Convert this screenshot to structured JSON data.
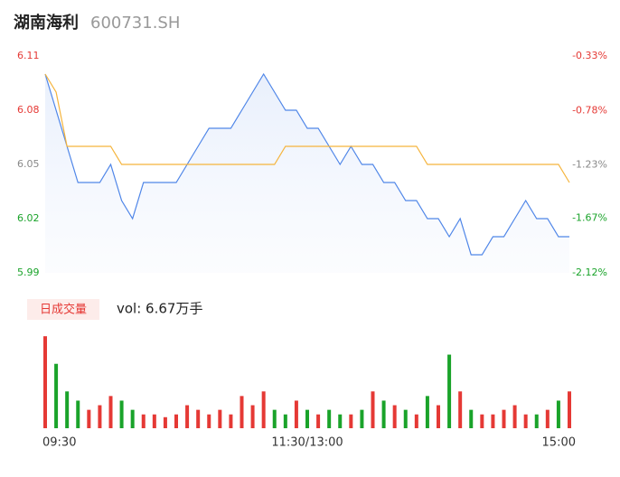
{
  "chart_data": {
    "type": "intraday",
    "title": "湖南海利",
    "subtitle": "600731.SH",
    "categories": [
      "09:30",
      null,
      null,
      null,
      null,
      null,
      null,
      null,
      null,
      null,
      null,
      null,
      null,
      null,
      null,
      null,
      null,
      null,
      null,
      null,
      null,
      null,
      null,
      null,
      "11:30/13:00",
      null,
      null,
      null,
      null,
      null,
      null,
      null,
      null,
      null,
      null,
      null,
      null,
      null,
      null,
      null,
      null,
      null,
      null,
      null,
      null,
      null,
      null,
      null,
      "15:00"
    ],
    "series": [
      {
        "name": "price",
        "color": "#4f86e8",
        "values": [
          6.1,
          6.08,
          6.06,
          6.04,
          6.04,
          6.04,
          6.05,
          6.03,
          6.02,
          6.04,
          6.04,
          6.04,
          6.04,
          6.05,
          6.06,
          6.07,
          6.07,
          6.07,
          6.08,
          6.09,
          6.1,
          6.09,
          6.08,
          6.08,
          6.07,
          6.07,
          6.06,
          6.05,
          6.06,
          6.05,
          6.05,
          6.04,
          6.04,
          6.03,
          6.03,
          6.02,
          6.02,
          6.01,
          6.02,
          6.0,
          6.0,
          6.01,
          6.01,
          6.02,
          6.03,
          6.02,
          6.02,
          6.01,
          6.01
        ]
      },
      {
        "name": "average",
        "color": "#f5b43c",
        "values": [
          6.1,
          6.09,
          6.06,
          6.06,
          6.06,
          6.06,
          6.06,
          6.05,
          6.05,
          6.05,
          6.05,
          6.05,
          6.05,
          6.05,
          6.05,
          6.05,
          6.05,
          6.05,
          6.05,
          6.05,
          6.05,
          6.05,
          6.06,
          6.06,
          6.06,
          6.06,
          6.06,
          6.06,
          6.06,
          6.06,
          6.06,
          6.06,
          6.06,
          6.06,
          6.06,
          6.05,
          6.05,
          6.05,
          6.05,
          6.05,
          6.05,
          6.05,
          6.05,
          6.05,
          6.05,
          6.05,
          6.05,
          6.05,
          6.04
        ]
      }
    ],
    "ylim": [
      5.99,
      6.11
    ],
    "yticks": [
      6.11,
      6.08,
      6.05,
      6.02,
      5.99
    ],
    "y2lim": [
      -0.33,
      -2.12
    ],
    "y2ticks": [
      {
        "value": -0.33,
        "label": "-0.33%"
      },
      {
        "value": -0.78,
        "label": "-0.78%"
      },
      {
        "value": -1.23,
        "label": "-1.23%"
      },
      {
        "value": -1.67,
        "label": "-1.67%"
      },
      {
        "value": -2.12,
        "label": "-2.12%"
      }
    ],
    "volume": {
      "label": "日成交量",
      "total": "vol: 6.67万手",
      "ylim": [
        0,
        1100
      ],
      "up_color": "#e53935",
      "down_color": "#1aa32a",
      "values": [
        1000,
        700,
        400,
        300,
        200,
        250,
        350,
        300,
        200,
        150,
        150,
        120,
        150,
        250,
        200,
        150,
        200,
        150,
        350,
        250,
        400,
        200,
        150,
        300,
        200,
        150,
        200,
        150,
        150,
        200,
        400,
        300,
        250,
        200,
        150,
        350,
        250,
        800,
        400,
        200,
        150,
        150,
        200,
        250,
        150,
        150,
        200,
        300,
        400
      ]
    }
  }
}
